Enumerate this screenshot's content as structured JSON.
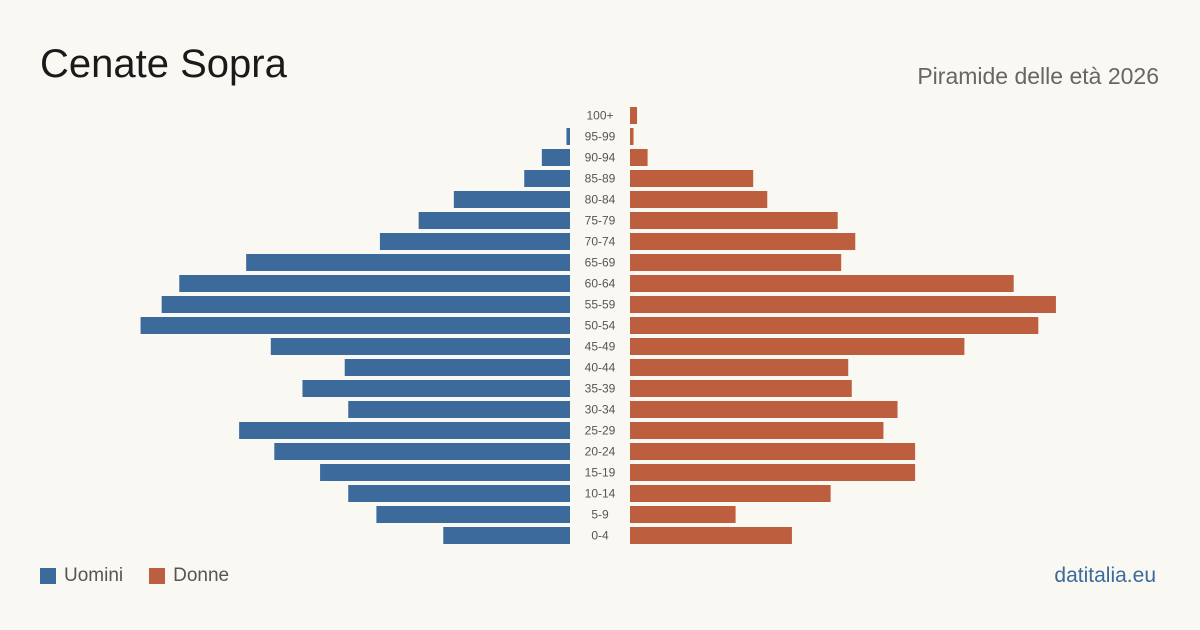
{
  "header": {
    "title": "Cenate Sopra",
    "subtitle": "Piramide delle età 2026"
  },
  "legend": {
    "male_label": "Uomini",
    "female_label": "Donne"
  },
  "brand": "datitalia.eu",
  "colors": {
    "male": "#3b6a9b",
    "female": "#bd5f3e",
    "background": "#faf8f3"
  },
  "chart_data": {
    "type": "bar",
    "orientation": "horizontal-pyramid",
    "categories": [
      "100+",
      "95-99",
      "90-94",
      "85-89",
      "80-84",
      "75-79",
      "70-74",
      "65-69",
      "60-64",
      "55-59",
      "50-54",
      "45-49",
      "40-44",
      "35-39",
      "30-34",
      "25-29",
      "20-24",
      "15-19",
      "10-14",
      "5-9",
      "0-4"
    ],
    "series": [
      {
        "name": "Uomini",
        "values": [
          0,
          1,
          8,
          13,
          33,
          43,
          54,
          92,
          111,
          116,
          122,
          85,
          64,
          76,
          63,
          94,
          84,
          71,
          63,
          55,
          36
        ]
      },
      {
        "name": "Donne",
        "values": [
          2,
          1,
          5,
          35,
          39,
          59,
          64,
          60,
          109,
          121,
          116,
          95,
          62,
          63,
          76,
          72,
          81,
          81,
          57,
          30,
          46
        ]
      }
    ],
    "legend_position": "bottom-left",
    "grid": false
  }
}
